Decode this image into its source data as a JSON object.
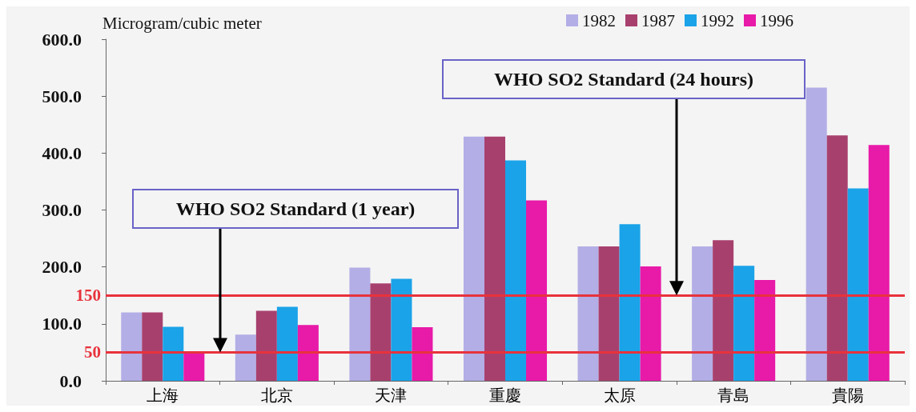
{
  "chart_data": {
    "type": "bar",
    "ylabel": "Microgram/cubic meter",
    "categories": [
      "上海",
      "北京",
      "天津",
      "重慶",
      "太原",
      "青島",
      "貴陽"
    ],
    "series": [
      {
        "name": "1982",
        "color": "#b3aee6",
        "values": [
          120,
          81,
          199,
          429,
          236,
          236,
          515
        ]
      },
      {
        "name": "1987",
        "color": "#a8406e",
        "values": [
          120,
          123,
          171,
          429,
          236,
          247,
          431
        ]
      },
      {
        "name": "1992",
        "color": "#1aa3e8",
        "values": [
          95,
          130,
          179,
          387,
          275,
          202,
          338
        ]
      },
      {
        "name": "1996",
        "color": "#e81aa8",
        "values": [
          50,
          98,
          94,
          317,
          201,
          177,
          414
        ]
      }
    ],
    "ylim": [
      0,
      600
    ],
    "yticks": [
      {
        "value": 0,
        "label": "0.0"
      },
      {
        "value": 100,
        "label": "100.0"
      },
      {
        "value": 200,
        "label": "200.0"
      },
      {
        "value": 300,
        "label": "300.0"
      },
      {
        "value": 400,
        "label": "400.0"
      },
      {
        "value": 500,
        "label": "500.0"
      },
      {
        "value": 600,
        "label": "600.0"
      }
    ],
    "ref_lines": [
      {
        "axis": "y",
        "value": 150,
        "label": "150",
        "color": "#e8323c"
      },
      {
        "axis": "y",
        "value": 50,
        "label": "50",
        "color": "#e8323c"
      }
    ],
    "annotations": [
      "WHO SO2 Standard (1 year)",
      "WHO SO2 Standard (24 hours)"
    ],
    "grid": false,
    "legend": "top right"
  }
}
